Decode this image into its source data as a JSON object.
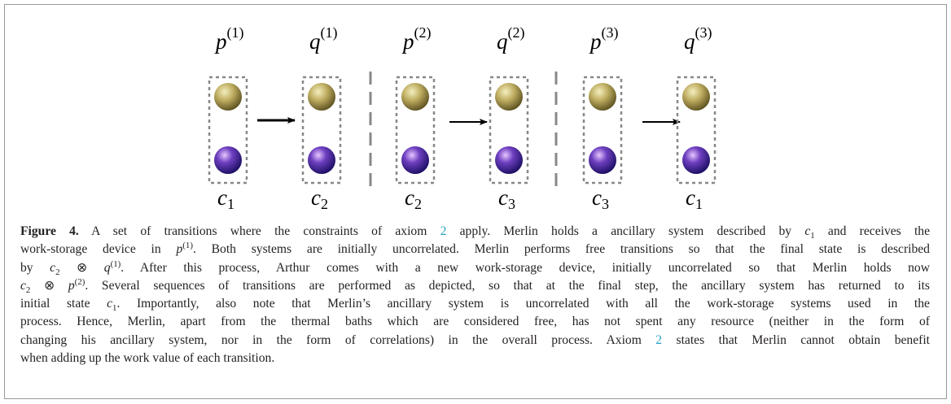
{
  "figure": {
    "panels": [
      {
        "top": {
          "base": "p",
          "sup": "(1)"
        },
        "bottom": {
          "base": "c",
          "sub": "1"
        }
      },
      {
        "top": {
          "base": "q",
          "sup": "(1)"
        },
        "bottom": {
          "base": "c",
          "sub": "2"
        }
      },
      {
        "top": {
          "base": "p",
          "sup": "(2)"
        },
        "bottom": {
          "base": "c",
          "sub": "2"
        }
      },
      {
        "top": {
          "base": "q",
          "sup": "(2)"
        },
        "bottom": {
          "base": "c",
          "sub": "3"
        }
      },
      {
        "top": {
          "base": "p",
          "sup": "(3)"
        },
        "bottom": {
          "base": "c",
          "sub": "3"
        }
      },
      {
        "top": {
          "base": "q",
          "sup": "(3)"
        },
        "bottom": {
          "base": "c",
          "sub": "1"
        }
      }
    ]
  },
  "caption": {
    "lines": [
      [
        {
          "bold": "Figure 4."
        },
        " A set of transitions where the constraints of axiom ",
        {
          "ref": "2"
        },
        " apply. Merlin holds a ancillary system described by ",
        {
          "base": "c",
          "sub": "1"
        },
        " and receives the"
      ],
      [
        "work-storage device in  ",
        {
          "base": "p",
          "sup": "(1)"
        },
        ". Both systems are initially uncorrelated. Merlin performs free transitions so that the final state is described"
      ],
      [
        "by ",
        {
          "base": "c",
          "sub": "2"
        },
        " ⊗ ",
        {
          "base": "q",
          "sup": "(1)"
        },
        ". After this process, Arthur comes with a new work-storage device, initially uncorrelated so that Merlin holds now"
      ],
      [
        {
          "base": "c",
          "sub": "2"
        },
        " ⊗ ",
        {
          "base": "p",
          "sup": "(2)"
        },
        ". Several sequences of transitions are performed as depicted, so that at the final step, the ancillary system has returned to its"
      ],
      [
        "initial state ",
        {
          "base": "c",
          "sub": "1"
        },
        ". Importantly, also note that Merlin’s ancillary system is uncorrelated with all the work-storage systems used in the"
      ],
      [
        "process. Hence, Merlin, apart from the thermal baths which are considered free, has not spent any resource (neither in the form of"
      ],
      [
        "changing his ancillary system, nor in the form of correlations) in the overall process. Axiom ",
        {
          "ref": "2"
        },
        " states that Merlin cannot obtain benefit"
      ],
      [
        "when adding up the work value of each transition."
      ]
    ]
  }
}
